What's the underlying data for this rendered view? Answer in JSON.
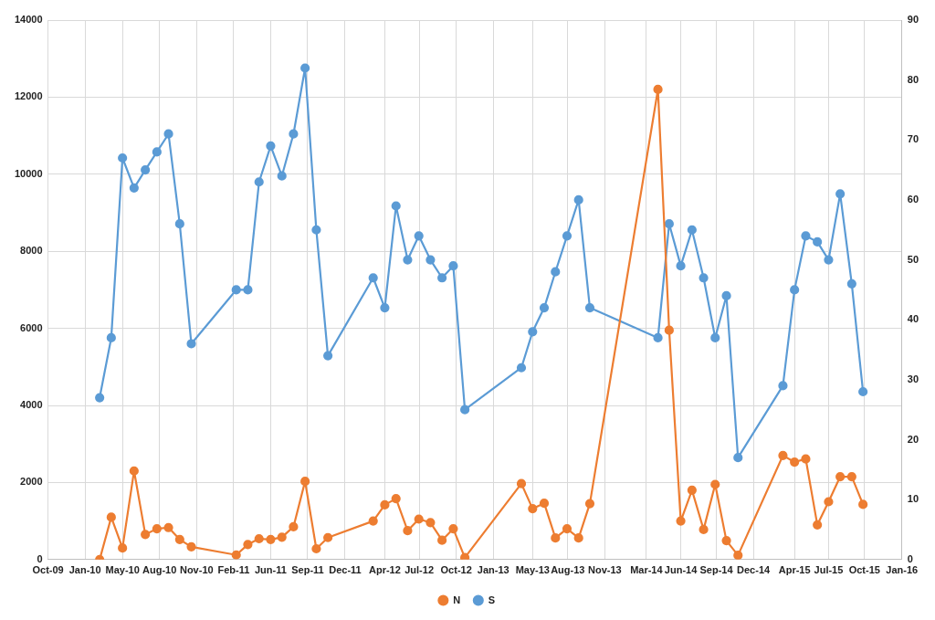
{
  "chart_data": {
    "type": "line",
    "x": [
      "2010-03-01",
      "2010-04-01",
      "2010-05-01",
      "2010-06-01",
      "2010-07-01",
      "2010-08-01",
      "2010-09-01",
      "2010-10-01",
      "2010-11-01",
      "2011-03-01",
      "2011-04-01",
      "2011-05-01",
      "2011-06-01",
      "2011-07-01",
      "2011-08-01",
      "2011-09-01",
      "2011-10-01",
      "2011-11-01",
      "2012-03-01",
      "2012-04-01",
      "2012-05-01",
      "2012-06-01",
      "2012-07-01",
      "2012-08-01",
      "2012-09-01",
      "2012-10-01",
      "2012-11-01",
      "2013-04-01",
      "2013-05-01",
      "2013-06-01",
      "2013-07-01",
      "2013-08-01",
      "2013-09-01",
      "2013-10-01",
      "2014-04-01",
      "2014-05-01",
      "2014-06-01",
      "2014-07-01",
      "2014-08-01",
      "2014-09-01",
      "2014-10-01",
      "2014-11-01",
      "2015-03-01",
      "2015-04-01",
      "2015-05-01",
      "2015-06-01",
      "2015-07-01",
      "2015-08-01",
      "2015-09-01",
      "2015-10-01"
    ],
    "series": [
      {
        "name": "N",
        "color": "#ed7d31",
        "values": [
          0,
          1100,
          300,
          2300,
          650,
          800,
          830,
          520,
          330,
          120,
          390,
          540,
          520,
          580,
          850,
          2030,
          280,
          570,
          1000,
          1420,
          1580,
          750,
          1050,
          960,
          500,
          800,
          50,
          1970,
          1320,
          1460,
          560,
          800,
          560,
          1450,
          12200,
          5950,
          1000,
          1800,
          780,
          1950,
          490,
          110,
          2700,
          2530,
          2610,
          900,
          1500,
          2150,
          2150,
          1430
        ]
      },
      {
        "name": "S",
        "color": "#5b9bd5",
        "axis": "y2",
        "values": [
          27,
          37,
          67,
          62,
          65,
          68,
          71,
          56,
          36,
          45,
          45,
          63,
          69,
          64,
          71,
          82,
          55,
          34,
          47,
          42,
          59,
          50,
          54,
          50,
          47,
          49,
          25,
          32,
          38,
          42,
          48,
          54,
          60,
          42,
          37,
          56,
          49,
          55,
          47,
          37,
          44,
          17,
          29,
          45,
          54,
          53,
          50,
          61,
          46,
          28
        ]
      }
    ],
    "xlim": [
      "2009-10-14",
      "2016-01-13"
    ],
    "xticks": [
      {
        "value": "2009-10-14",
        "label": "Oct-09"
      },
      {
        "value": "2010-01-21",
        "label": "Jan-10"
      },
      {
        "value": "2010-05-01",
        "label": "May-10"
      },
      {
        "value": "2010-08-08",
        "label": "Aug-10"
      },
      {
        "value": "2010-11-15",
        "label": "Nov-10"
      },
      {
        "value": "2011-02-22",
        "label": "Feb-11"
      },
      {
        "value": "2011-06-01",
        "label": "Jun-11"
      },
      {
        "value": "2011-09-08",
        "label": "Sep-11"
      },
      {
        "value": "2011-12-17",
        "label": "Dec-11"
      },
      {
        "value": "2012-04-01",
        "label": "Apr-12"
      },
      {
        "value": "2012-07-02",
        "label": "Jul-12"
      },
      {
        "value": "2012-10-09",
        "label": "Oct-12"
      },
      {
        "value": "2013-01-16",
        "label": "Jan-13"
      },
      {
        "value": "2013-05-01",
        "label": "May-13"
      },
      {
        "value": "2013-08-03",
        "label": "Aug-13"
      },
      {
        "value": "2013-11-10",
        "label": "Nov-13"
      },
      {
        "value": "2014-03-01",
        "label": "Mar-14"
      },
      {
        "value": "2014-06-01",
        "label": "Jun-14"
      },
      {
        "value": "2014-09-04",
        "label": "Sep-14"
      },
      {
        "value": "2014-12-12",
        "label": "Dec-14"
      },
      {
        "value": "2015-04-01",
        "label": "Apr-15"
      },
      {
        "value": "2015-07-01",
        "label": "Jul-15"
      },
      {
        "value": "2015-10-05",
        "label": "Oct-15"
      },
      {
        "value": "2016-01-13",
        "label": "Jan-16"
      }
    ],
    "ylim": [
      0,
      14000
    ],
    "yticks": [
      0,
      2000,
      4000,
      6000,
      8000,
      10000,
      12000,
      14000
    ],
    "y2lim": [
      0,
      90
    ],
    "y2ticks": [
      0,
      10,
      20,
      30,
      40,
      50,
      60,
      70,
      80,
      90
    ],
    "grid": true,
    "legend": "bottom",
    "marker": "circle",
    "line_style": "solid"
  }
}
